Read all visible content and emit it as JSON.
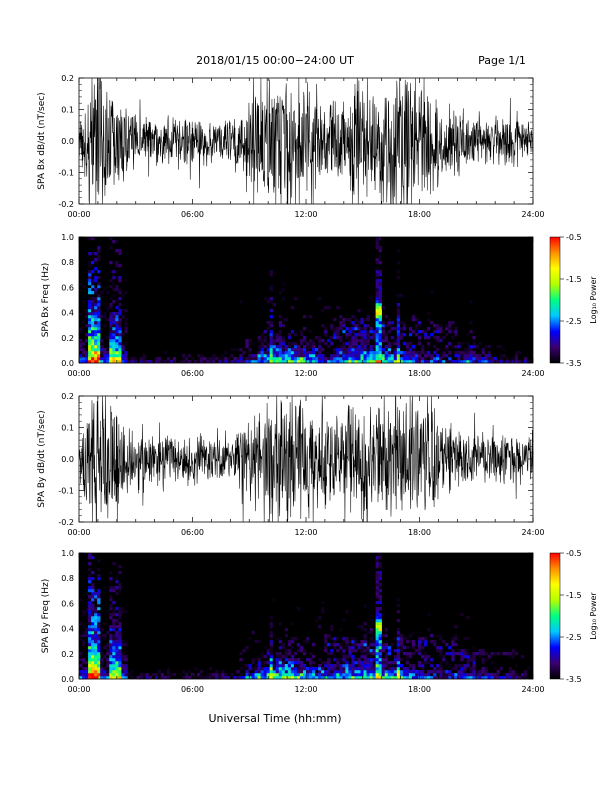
{
  "page": {
    "date_range": "2018/01/15  00:00−24:00 UT",
    "page_number": "Page 1/1",
    "xlabel": "Universal Time (hh:mm)"
  },
  "time_ticks": [
    "00:00",
    "06:00",
    "12:00",
    "18:00",
    "24:00"
  ],
  "colorbar": {
    "label": "Log₁₀ Power",
    "ticks": [
      "-0.5",
      "-1.5",
      "-2.5",
      "-3.5"
    ],
    "range": [
      -3.5,
      -0.5
    ],
    "colors": [
      "#000000",
      "#3a0070",
      "#0000ff",
      "#00c8ff",
      "#00ff80",
      "#b4ff00",
      "#ffff00",
      "#ff9000",
      "#ff0000"
    ]
  },
  "chart_data": [
    {
      "type": "line",
      "ylabel": "SPA Bx dB/dt (nT/sec)",
      "xlim_hours": [
        0,
        24
      ],
      "ylim": [
        -0.2,
        0.2
      ],
      "yticks": [
        "0.2",
        "0.1",
        "0.0",
        "-0.1",
        "-0.2"
      ],
      "xticks": [
        "00:00",
        "06:00",
        "12:00",
        "18:00",
        "24:00"
      ],
      "series_color": "#000000",
      "activity_envelope": {
        "hours": [
          0,
          0.6,
          1.0,
          1.8,
          2.2,
          3,
          5,
          6,
          8,
          9.5,
          10.5,
          11.5,
          12.5,
          13.5,
          14.5,
          15.5,
          16.5,
          17.5,
          18.5,
          19.5,
          21,
          22.5,
          24
        ],
        "amplitude": [
          0.06,
          0.24,
          0.26,
          0.2,
          0.14,
          0.1,
          0.08,
          0.09,
          0.07,
          0.2,
          0.25,
          0.24,
          0.16,
          0.16,
          0.22,
          0.18,
          0.24,
          0.25,
          0.2,
          0.12,
          0.08,
          0.1,
          0.07
        ]
      }
    },
    {
      "type": "heatmap",
      "ylabel": "SPA Bx Freq (Hz)",
      "xlim_hours": [
        0,
        24
      ],
      "ylim": [
        0.0,
        1.0
      ],
      "yticks": [
        "1.0",
        "0.8",
        "0.6",
        "0.4",
        "0.2",
        "0.0"
      ],
      "xticks": [
        "00:00",
        "06:00",
        "12:00",
        "18:00",
        "24:00"
      ],
      "zlabel": "Log₁₀ Power",
      "zlim": [
        -3.5,
        -0.5
      ]
    },
    {
      "type": "line",
      "ylabel": "SPA By dB/dt (nT/sec)",
      "xlim_hours": [
        0,
        24
      ],
      "ylim": [
        -0.2,
        0.2
      ],
      "yticks": [
        "0.2",
        "0.1",
        "0.0",
        "-0.1",
        "-0.2"
      ],
      "xticks": [
        "00:00",
        "06:00",
        "12:00",
        "18:00",
        "24:00"
      ],
      "series_color": "#000000",
      "activity_envelope": {
        "hours": [
          0,
          0.6,
          1.0,
          1.8,
          2.2,
          3,
          5,
          6,
          8,
          9.5,
          10.5,
          11.5,
          12.5,
          13.5,
          14.5,
          15.5,
          16.5,
          17.5,
          18.5,
          19.5,
          21,
          22.5,
          24
        ],
        "amplitude": [
          0.06,
          0.24,
          0.26,
          0.22,
          0.15,
          0.1,
          0.08,
          0.09,
          0.07,
          0.2,
          0.26,
          0.25,
          0.17,
          0.16,
          0.22,
          0.18,
          0.24,
          0.26,
          0.2,
          0.12,
          0.08,
          0.1,
          0.07
        ]
      }
    },
    {
      "type": "heatmap",
      "ylabel": "SPA By Freq (Hz)",
      "xlim_hours": [
        0,
        24
      ],
      "ylim": [
        0.0,
        1.0
      ],
      "yticks": [
        "1.0",
        "0.8",
        "0.6",
        "0.4",
        "0.2",
        "0.0"
      ],
      "xticks": [
        "00:00",
        "06:00",
        "12:00",
        "18:00",
        "24:00"
      ],
      "zlabel": "Log₁₀ Power",
      "zlim": [
        -3.5,
        -0.5
      ]
    }
  ]
}
